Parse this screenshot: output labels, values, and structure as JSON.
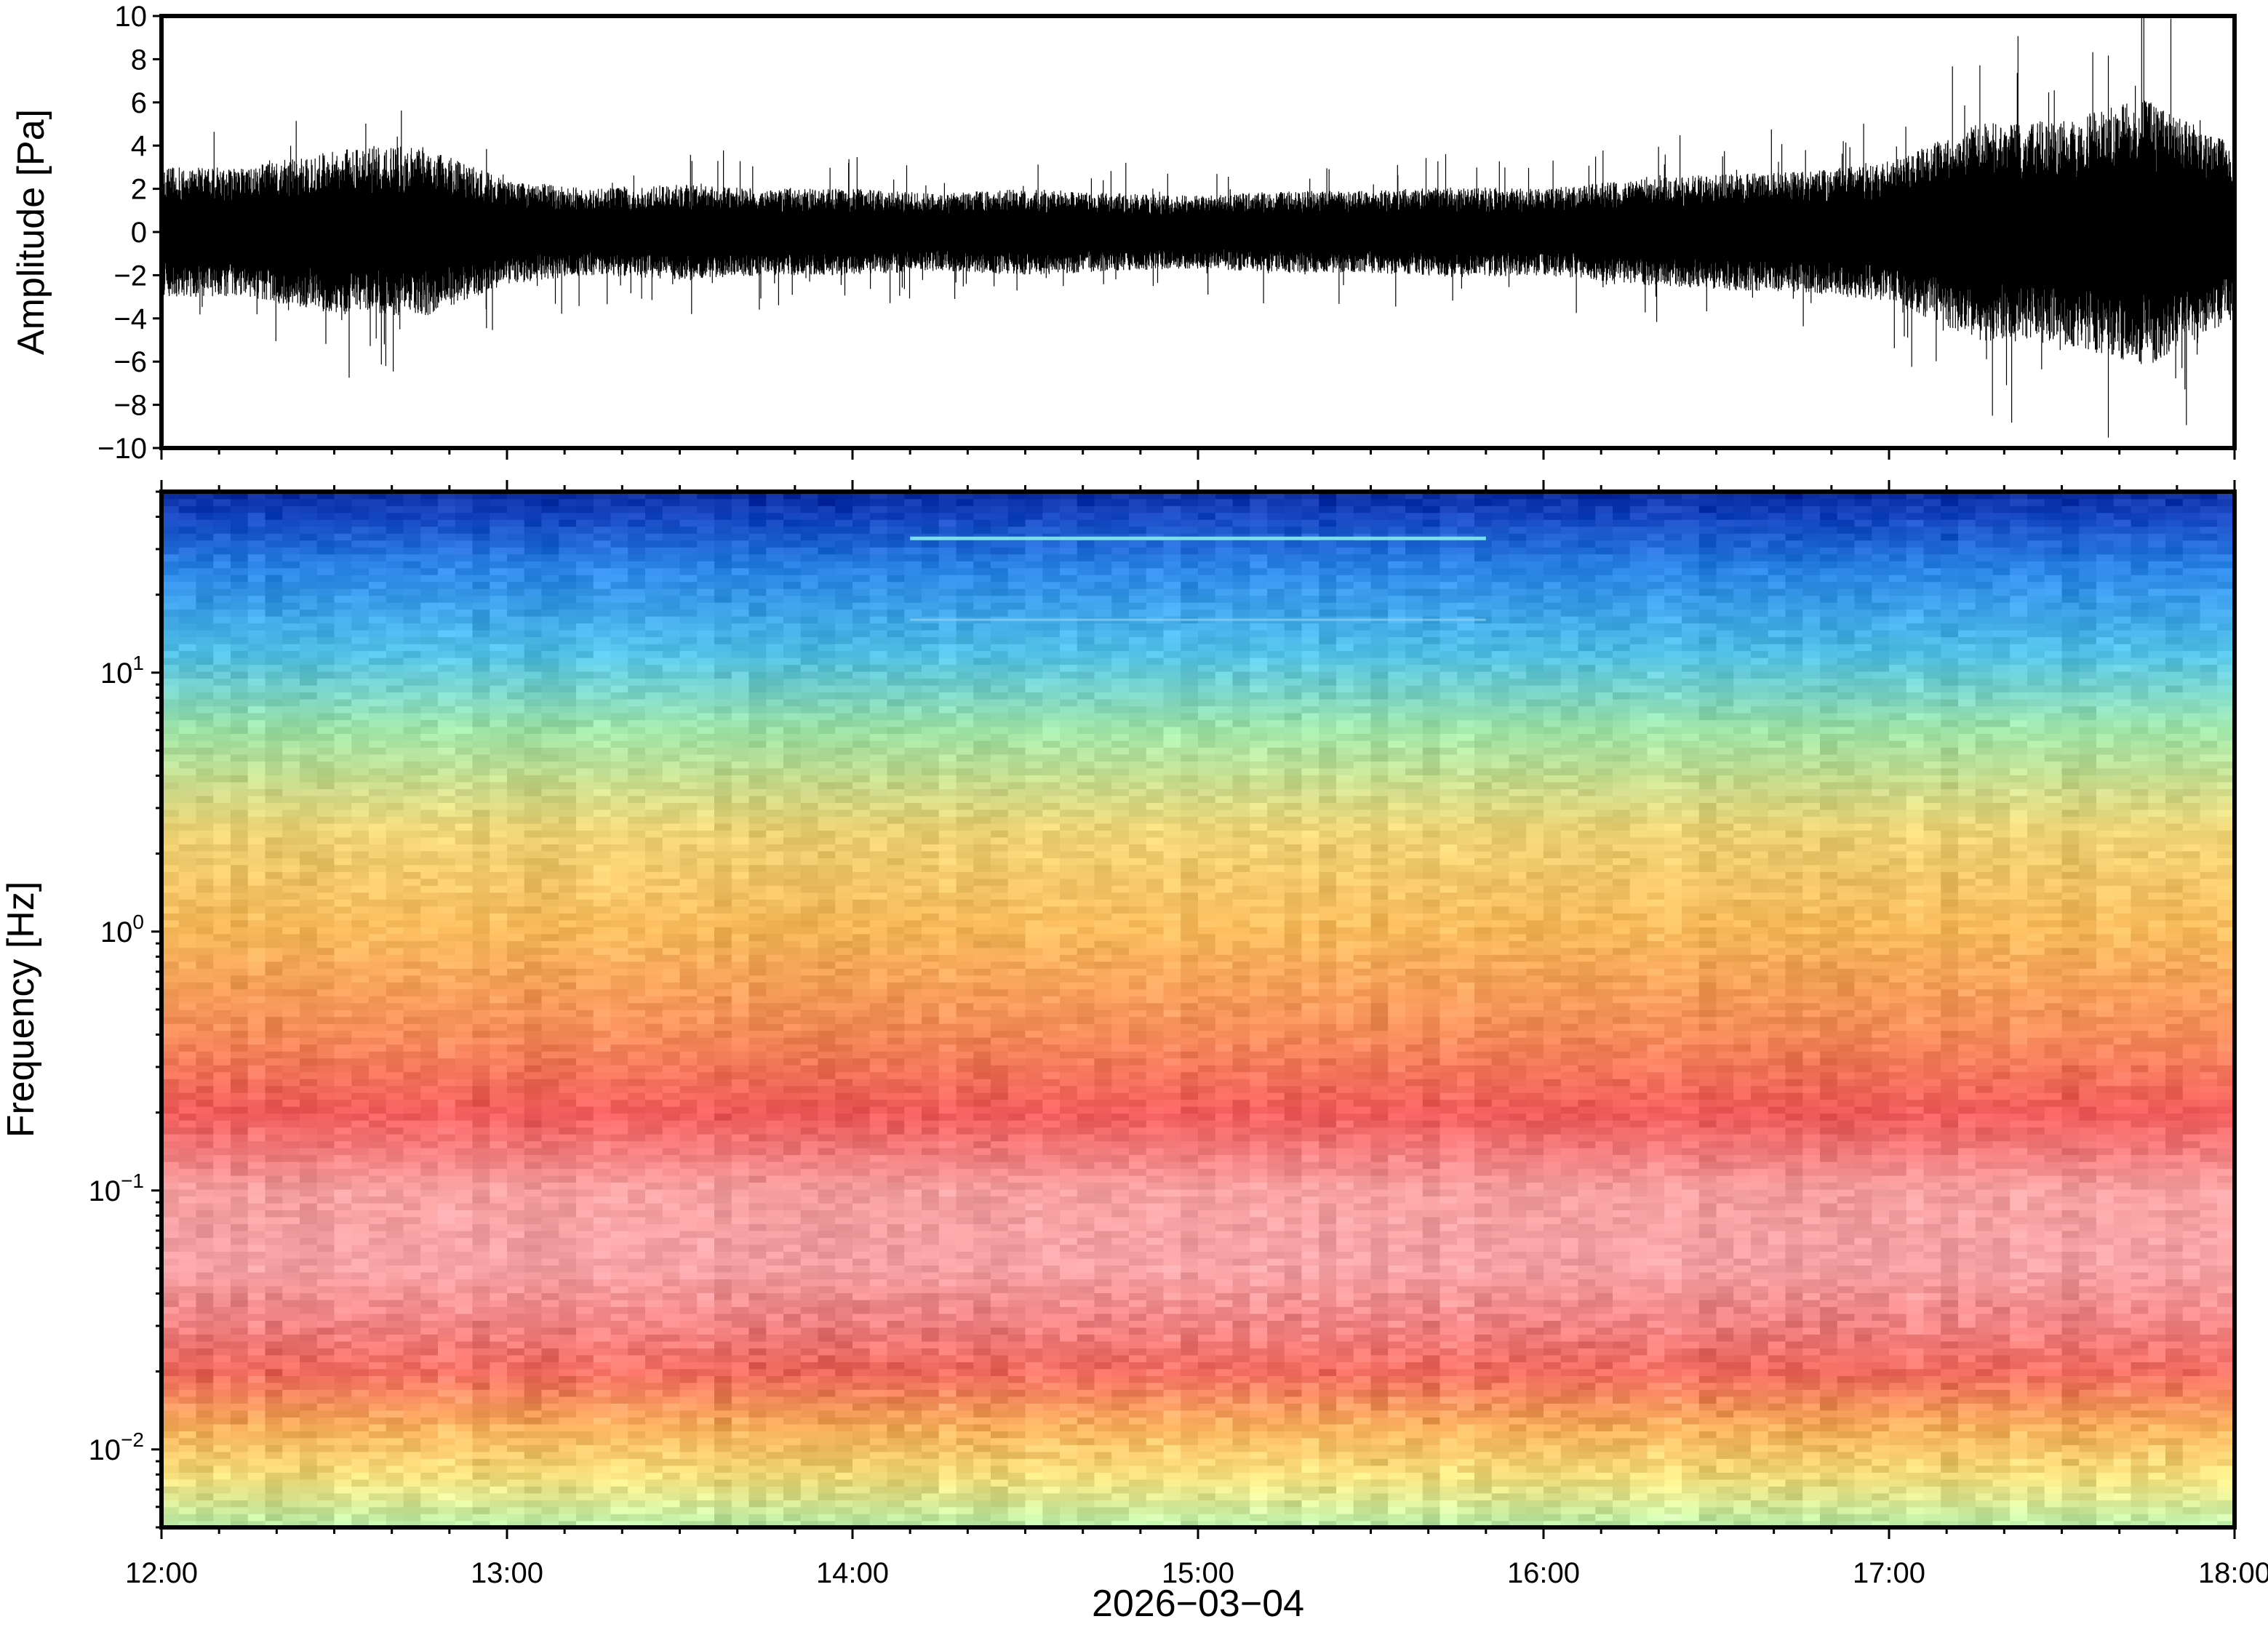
{
  "chart_data": [
    {
      "type": "line",
      "panel": "waveform",
      "title": "",
      "xlabel": "",
      "ylabel": "Amplitude [Pa]",
      "ylim": [
        -10,
        10
      ],
      "yticks": [
        -10,
        -8,
        -6,
        -4,
        -2,
        0,
        2,
        4,
        6,
        8,
        10
      ],
      "ytick_labels": [
        "−10",
        "−8",
        "−6",
        "−4",
        "−2",
        "0",
        "2",
        "4",
        "6",
        "8",
        "10"
      ],
      "xlim": [
        "12:00",
        "18:00"
      ],
      "grid": false,
      "series": [
        {
          "color": "#000000",
          "envelope_time": [
            "12:00",
            "12:15",
            "12:30",
            "12:45",
            "13:00",
            "13:15",
            "13:30",
            "13:45",
            "14:00",
            "14:15",
            "14:30",
            "14:45",
            "15:00",
            "15:15",
            "15:30",
            "15:45",
            "16:00",
            "16:15",
            "16:30",
            "16:45",
            "17:00",
            "17:15",
            "17:30",
            "17:45",
            "18:00"
          ],
          "envelope_amplitude": [
            3.0,
            3.0,
            3.8,
            4.0,
            2.4,
            2.0,
            2.2,
            2.0,
            2.0,
            1.8,
            2.0,
            1.8,
            1.7,
            1.9,
            1.9,
            2.1,
            2.0,
            2.4,
            2.7,
            2.8,
            3.2,
            5.0,
            5.2,
            6.2,
            4.0
          ]
        }
      ]
    },
    {
      "type": "heatmap",
      "panel": "spectrogram",
      "title": "",
      "xlabel": "2026−03−04",
      "ylabel": "Frequency [Hz]",
      "yscale": "log",
      "ylim": [
        0.005,
        50
      ],
      "yticks": [
        0.01,
        0.1,
        1,
        10
      ],
      "ytick_labels": [
        {
          "base": "10",
          "exp": "−2"
        },
        {
          "base": "10",
          "exp": "−1"
        },
        {
          "base": "10",
          "exp": "0"
        },
        {
          "base": "10",
          "exp": "1"
        }
      ],
      "xlim": [
        "12:00",
        "18:00"
      ],
      "xticks": [
        "12:00",
        "13:00",
        "14:00",
        "15:00",
        "16:00",
        "17:00",
        "18:00"
      ],
      "colormap": [
        "#0a2a9c",
        "#1e60d8",
        "#2fa2ee",
        "#57d0e0",
        "#a8ecb0",
        "#e6f18c",
        "#f7c766",
        "#f7a050",
        "#f06a5e",
        "#ef4f57",
        "#f5a1a4"
      ],
      "profile_frequency_hz": [
        0.005,
        0.008,
        0.012,
        0.02,
        0.03,
        0.05,
        0.1,
        0.2,
        0.4,
        1.0,
        2.5,
        6.0,
        12.0,
        25.0,
        40.0,
        50.0
      ],
      "profile_color": [
        "#b8eeaa",
        "#f5dd7a",
        "#f7b15a",
        "#f06a5e",
        "#f08080",
        "#f5a1a4",
        "#f59fa0",
        "#ef5a5a",
        "#f48a58",
        "#f7b85a",
        "#ecd374",
        "#9ee3a6",
        "#4fbfe5",
        "#2b86e6",
        "#1344c0",
        "#0a2a9c"
      ],
      "narrowband_lines": [
        {
          "frequency_hz": 33,
          "start": "14:10",
          "end": "15:50"
        },
        {
          "frequency_hz": 16,
          "start": "14:10",
          "end": "15:50"
        }
      ]
    }
  ]
}
